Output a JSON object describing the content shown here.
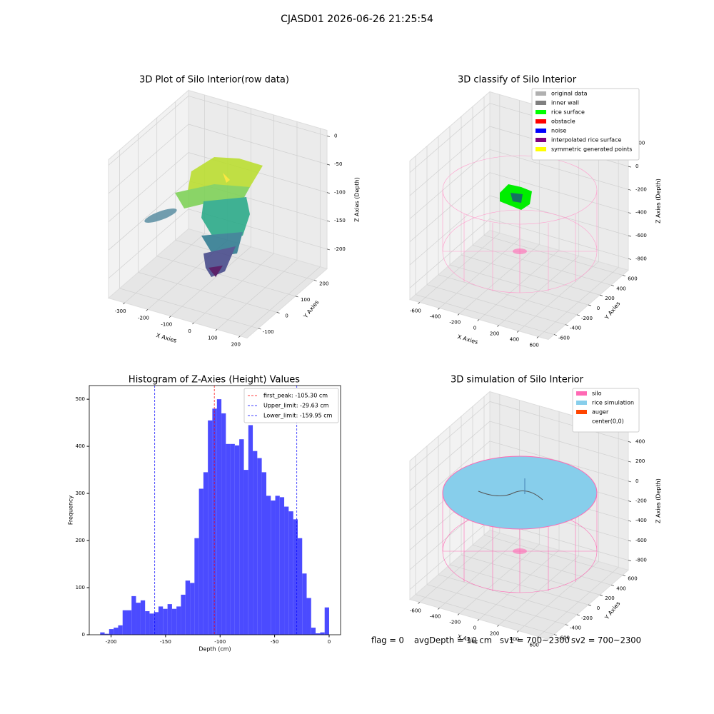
{
  "title": "CJASD01 2026-06-26 21:25:54",
  "chart_data": [
    {
      "type": "scatter3d",
      "title": "3D Plot of Silo Interior(row data)",
      "xlabel": "X Axies",
      "ylabel": "Y Axies",
      "zlabel": "Z Axies (Depth)",
      "xlim": [
        -370,
        230
      ],
      "ylim": [
        -160,
        270
      ],
      "zlim": [
        -235,
        10
      ],
      "xticks": [
        -300,
        -200,
        -100,
        0,
        100,
        200
      ],
      "yticks": [
        -100,
        0,
        100,
        200
      ],
      "zticks": [
        0,
        -50,
        -100,
        -150,
        -200
      ]
    },
    {
      "type": "scatter3d",
      "title": "3D classify of Silo Interior",
      "xlabel": "X Axies",
      "ylabel": "Y Axies",
      "zlabel": "Z Axies (Depth)",
      "xlim": [
        -700,
        700
      ],
      "ylim": [
        -700,
        700
      ],
      "zlim": [
        -900,
        300
      ],
      "xticks": [
        -600,
        -400,
        -200,
        0,
        200,
        400,
        600
      ],
      "yticks": [
        -600,
        -400,
        -200,
        0,
        200,
        400,
        600
      ],
      "zticks": [
        200,
        0,
        -200,
        -400,
        -600,
        -800
      ],
      "legend_loc": "upper right",
      "legend": [
        {
          "name": "original data",
          "color": "#b0b0b0"
        },
        {
          "name": "inner wall",
          "color": "#808080"
        },
        {
          "name": "rice surface",
          "color": "#00ff00"
        },
        {
          "name": "obstacle",
          "color": "#ff0000"
        },
        {
          "name": "noise",
          "color": "#0000ff"
        },
        {
          "name": "interpolated rice surface",
          "color": "#800080"
        },
        {
          "name": "symmetric generated points",
          "color": "#ffff00"
        }
      ]
    },
    {
      "type": "histogram",
      "title": "Histogram of Z-Axies (Height) Values",
      "xlabel": "Depth (cm)",
      "ylabel": "Frequency",
      "color": "#4b4bff",
      "bins": [
        -210.0,
        -205.9,
        -201.8,
        -197.6,
        -193.5,
        -189.4,
        -185.3,
        -181.2,
        -177.1,
        -172.9,
        -168.8,
        -164.7,
        -160.6,
        -156.5,
        -152.4,
        -148.2,
        -144.1,
        -140.0,
        -135.9,
        -131.8,
        -127.6,
        -123.5,
        -119.4,
        -115.3,
        -111.2,
        -107.1,
        -102.9,
        -98.8,
        -94.7,
        -90.6,
        -86.5,
        -82.4,
        -78.2,
        -74.1,
        -70.0,
        -65.9,
        -61.8,
        -57.6,
        -53.5,
        -49.4,
        -45.3,
        -41.2,
        -37.1,
        -32.9,
        -28.8,
        -24.7,
        -20.6,
        -16.5,
        -12.4,
        -8.2,
        -4.1,
        0.0
      ],
      "values": [
        5,
        2,
        12,
        15,
        20,
        52,
        52,
        82,
        68,
        73,
        50,
        45,
        48,
        60,
        55,
        65,
        55,
        60,
        85,
        115,
        110,
        205,
        310,
        345,
        455,
        480,
        500,
        470,
        405,
        405,
        402,
        415,
        350,
        445,
        390,
        375,
        345,
        295,
        285,
        295,
        292,
        272,
        262,
        245,
        205,
        130,
        78,
        15,
        3,
        5,
        58
      ],
      "xlim": [
        -220,
        10.5
      ],
      "ylim": [
        0,
        529
      ],
      "xticks": [
        -200,
        -150,
        -100,
        -50,
        0
      ],
      "yticks": [
        0,
        100,
        200,
        300,
        400,
        500
      ],
      "legend_loc": "upper right",
      "vlines": [
        {
          "value": -105.3,
          "label": "first_peak: -105.30 cm",
          "color": "#ff0000"
        },
        {
          "value": -29.63,
          "label": "Upper_limit: -29.63 cm",
          "color": "#0000ff"
        },
        {
          "value": -159.95,
          "label": "Lower_limit: -159.95 cm",
          "color": "#0000ff"
        }
      ]
    },
    {
      "type": "scatter3d",
      "title": "3D simulation of Silo Interior",
      "xlabel": "X Axies",
      "ylabel": "Y Axies",
      "zlabel": "Z Axies (Depth)",
      "xlim": [
        -700,
        700
      ],
      "ylim": [
        -700,
        700
      ],
      "zlim": [
        -900,
        500
      ],
      "xticks": [
        -600,
        -400,
        -200,
        0,
        200,
        400,
        600
      ],
      "yticks": [
        -600,
        -400,
        -200,
        0,
        200,
        400,
        600
      ],
      "zticks": [
        400,
        200,
        0,
        -200,
        -400,
        -600,
        -800
      ],
      "legend_loc": "upper right",
      "legend": [
        {
          "name": "silo",
          "color": "#ff69b4"
        },
        {
          "name": "rice simulation",
          "color": "#87ceeb"
        },
        {
          "name": "auger",
          "color": "#ff4500"
        },
        {
          "name": "center(0,0)",
          "color": "#ffffff"
        }
      ]
    }
  ],
  "status": [
    "flag = 0",
    "avgDepth = 10 cm",
    "sv1 = 700~2300",
    "sv2 = 700~2300"
  ]
}
